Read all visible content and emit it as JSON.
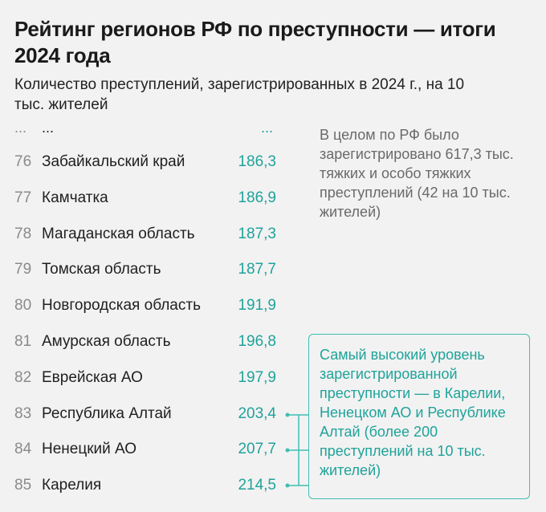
{
  "title": "Рейтинг регионов РФ по преступности — итоги 2024 года",
  "subtitle": "Количество преступлений, зарегистрированных в 2024 г., на 10 тыс. жителей",
  "ellipsis": {
    "rank": "...",
    "name": "...",
    "value": "..."
  },
  "note": "В целом по РФ было зарегистрировано 617,3 тыс. тяжких и особо тяжких преступлений (42 на 10 тыс. жителей)",
  "callout": "Самый высокий уровень зарегистрированной преступности — в Карелии, Ненецком АО и Республике Алтай (более 200 преступлений на 10 тыс. жителей)",
  "colors": {
    "accent": "#1fa39a",
    "rank": "#8a8a8a",
    "background": "#f2f2f2"
  },
  "chart_data": {
    "type": "table",
    "title": "Рейтинг регионов РФ по преступности — итоги 2024 года",
    "subtitle": "Количество преступлений, зарегистрированных в 2024 г., на 10 тыс. жителей",
    "rows": [
      {
        "rank": "76",
        "region": "Забайкальский край",
        "value": "186,3"
      },
      {
        "rank": "77",
        "region": "Камчатка",
        "value": "186,9"
      },
      {
        "rank": "78",
        "region": "Магаданская область",
        "value": "187,3"
      },
      {
        "rank": "79",
        "region": "Томская область",
        "value": "187,7"
      },
      {
        "rank": "80",
        "region": "Новгородская область",
        "value": "191,9"
      },
      {
        "rank": "81",
        "region": "Амурская область",
        "value": "196,8"
      },
      {
        "rank": "82",
        "region": "Еврейская АО",
        "value": "197,9"
      },
      {
        "rank": "83",
        "region": "Республика Алтай",
        "value": "203,4",
        "highlight": true
      },
      {
        "rank": "84",
        "region": "Ненецкий АО",
        "value": "207,7",
        "highlight": true
      },
      {
        "rank": "85",
        "region": "Карелия",
        "value": "214,5",
        "highlight": true
      }
    ]
  }
}
